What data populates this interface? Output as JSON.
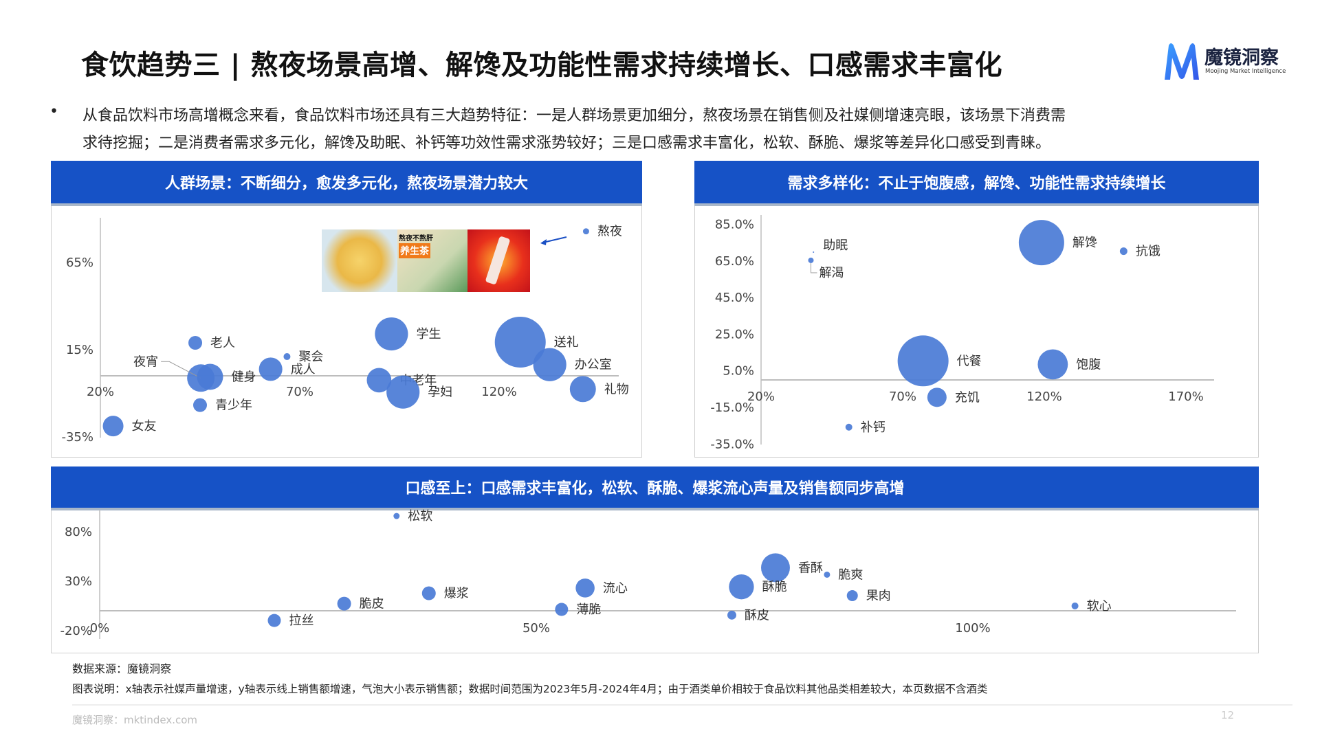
{
  "title": "食饮趋势三 | 熬夜场景高增、解馋及功能性需求持续增长、口感需求丰富化",
  "logo": {
    "name": "魔镜洞察",
    "subtitle": "Moojing Market Intelligence"
  },
  "bullet": {
    "marker": "•",
    "lines": [
      "从食品饮料市场高增概念来看，食品饮料市场还具有三大趋势特征：一是人群场景更加细分，熬夜场景在销售侧及社媒侧增速亮眼，该场景下消费需",
      "求待挖掘；二是消费者需求多元化，解馋及助眠、补钙等功效性需求涨势较好；三是口感需求丰富化，松软、酥脆、爆浆等差异化口感受到青睐。"
    ]
  },
  "colors": {
    "header": "#1652c6",
    "bubble": "#4a7bd6",
    "axis": "#bdbdbd"
  },
  "image_inset": {
    "tea_text": "熬夜不熬肝",
    "tea_label": "养生茶"
  },
  "chart_data": [
    {
      "type": "scatter",
      "title": "人群场景：不断细分，愈发多元化，熬夜场景潜力较大",
      "x_ticks": [
        "20%",
        "70%",
        "120%"
      ],
      "y_ticks": [
        "65%",
        "15%",
        "-35%"
      ],
      "xlim": [
        20,
        150
      ],
      "ylim": [
        -35,
        85
      ],
      "points": [
        {
          "label": "熬夜",
          "x": 141.8,
          "y": 82.8,
          "size": 20
        },
        {
          "label": "老人",
          "x": 43.8,
          "y": 18.9,
          "size": 100
        },
        {
          "label": "夜宵",
          "x": 45.2,
          "y": -1.3,
          "size": 400
        },
        {
          "label": "健身",
          "x": 47.5,
          "y": -0.6,
          "size": 360
        },
        {
          "label": "聚会",
          "x": 66.8,
          "y": 11,
          "size": 25
        },
        {
          "label": "成人",
          "x": 62.7,
          "y": 3.8,
          "size": 290
        },
        {
          "label": "学生",
          "x": 93,
          "y": 24,
          "size": 580
        },
        {
          "label": "中老年",
          "x": 89.9,
          "y": -2.5,
          "size": 320
        },
        {
          "label": "孕妇",
          "x": 95.9,
          "y": -9.3,
          "size": 580
        },
        {
          "label": "送礼",
          "x": 125.3,
          "y": 19.3,
          "size": 1370
        },
        {
          "label": "办公室",
          "x": 132.7,
          "y": 6.4,
          "size": 580
        },
        {
          "label": "礼物",
          "x": 141,
          "y": -7.6,
          "size": 360
        },
        {
          "label": "青少年",
          "x": 45,
          "y": -16.8,
          "size": 100
        },
        {
          "label": "女友",
          "x": 23.2,
          "y": -28.8,
          "size": 225
        }
      ]
    },
    {
      "type": "scatter",
      "title": "需求多样化：不止于饱腹感，解馋、功能性需求持续增长",
      "x_ticks": [
        "20%",
        "70%",
        "120%",
        "170%"
      ],
      "y_ticks": [
        "85.0%",
        "65.0%",
        "45.0%",
        "25.0%",
        "5.0%",
        "-15.0%",
        "-35.0%"
      ],
      "xlim": [
        20,
        185
      ],
      "ylim": [
        -35,
        85
      ],
      "points": [
        {
          "label": "助眠",
          "x": 38.5,
          "y": 69.8,
          "size": 1
        },
        {
          "label": "解渴",
          "x": 37.6,
          "y": 65.3,
          "size": 16
        },
        {
          "label": "解馋",
          "x": 119,
          "y": 75,
          "size": 1090
        },
        {
          "label": "抗饿",
          "x": 148,
          "y": 70.3,
          "size": 30
        },
        {
          "label": "代餐",
          "x": 77.2,
          "y": 10.4,
          "size": 1370
        },
        {
          "label": "饱腹",
          "x": 123,
          "y": 8.5,
          "size": 480
        },
        {
          "label": "充饥",
          "x": 82.1,
          "y": -9.5,
          "size": 196
        },
        {
          "label": "补钙",
          "x": 51,
          "y": -25.8,
          "size": 25
        }
      ]
    },
    {
      "type": "scatter",
      "title": "口感至上：口感需求丰富化，松软、酥脆、爆浆流心声量及销售额同步高增",
      "x_ticks": [
        "0%",
        "50%",
        "100%"
      ],
      "y_ticks": [
        "80%",
        "30%",
        "-20%"
      ],
      "xlim": [
        0,
        130
      ],
      "ylim": [
        -20,
        100
      ],
      "points": [
        {
          "label": "松软",
          "x": 34,
          "y": 95.8,
          "size": 20
        },
        {
          "label": "香酥",
          "x": 77.4,
          "y": 43.5,
          "size": 440
        },
        {
          "label": "脆爽",
          "x": 83.3,
          "y": 36.5,
          "size": 20
        },
        {
          "label": "酥脆",
          "x": 73.5,
          "y": 24.2,
          "size": 330
        },
        {
          "label": "流心",
          "x": 55.6,
          "y": 23,
          "size": 190
        },
        {
          "label": "果肉",
          "x": 86.2,
          "y": 15.3,
          "size": 64
        },
        {
          "label": "爆浆",
          "x": 37.7,
          "y": 17.7,
          "size": 100
        },
        {
          "label": "脆皮",
          "x": 28,
          "y": 7.2,
          "size": 100
        },
        {
          "label": "薄脆",
          "x": 52.9,
          "y": 1.4,
          "size": 90
        },
        {
          "label": "软心",
          "x": 111.7,
          "y": 4.9,
          "size": 25
        },
        {
          "label": "酥皮",
          "x": 72.4,
          "y": -4.4,
          "size": 42
        },
        {
          "label": "拉丝",
          "x": 20,
          "y": -9.8,
          "size": 90
        }
      ]
    }
  ],
  "footer": {
    "source": "数据来源：魔镜洞察",
    "note": "图表说明：x轴表示社媒声量增速，y轴表示线上销售额增速，气泡大小表示销售额；数据时间范围为2023年5月-2024年4月；由于酒类单价相较于食品饮料其他品类相差较大，本页数据不含酒类",
    "site": "魔镜洞察：mktindex.com",
    "page": "12"
  }
}
